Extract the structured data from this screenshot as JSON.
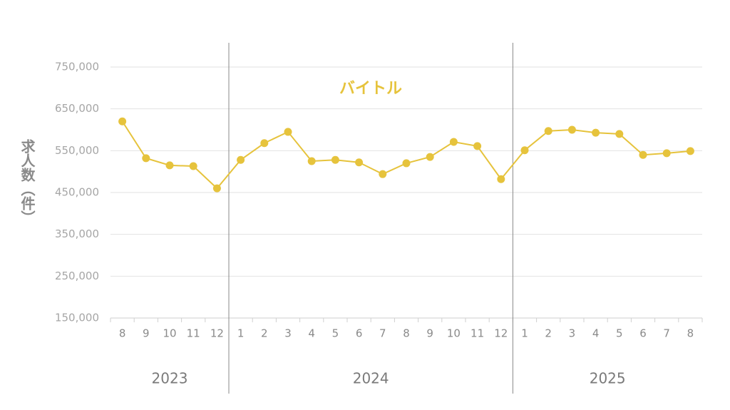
{
  "chart_data": {
    "type": "line",
    "title": "バイトル",
    "y_label": "求人数（件）",
    "categories": [
      "8",
      "9",
      "10",
      "11",
      "12",
      "1",
      "2",
      "3",
      "4",
      "5",
      "6",
      "7",
      "8",
      "9",
      "10",
      "11",
      "12",
      "1",
      "2",
      "3",
      "4",
      "5",
      "6",
      "7",
      "8"
    ],
    "year_groups": [
      {
        "name": "2023",
        "count": 5
      },
      {
        "name": "2024",
        "count": 12
      },
      {
        "name": "2025",
        "count": 8
      }
    ],
    "values": [
      620000,
      532000,
      515000,
      513000,
      460000,
      528000,
      568000,
      595000,
      525000,
      528000,
      522000,
      494000,
      520000,
      535000,
      571000,
      561000,
      482000,
      551000,
      597000,
      600000,
      593000,
      590000,
      540000,
      544000,
      549000
    ],
    "color": "#e6c33c",
    "ylim": [
      150000,
      750000
    ],
    "yticks": [
      {
        "value": 150000,
        "label": "150,000"
      },
      {
        "value": 250000,
        "label": "250,000"
      },
      {
        "value": 350000,
        "label": "350,000"
      },
      {
        "value": 450000,
        "label": "450,000"
      },
      {
        "value": 550000,
        "label": "550,000"
      },
      {
        "value": 650000,
        "label": "650,000"
      },
      {
        "value": 750000,
        "label": "750,000"
      }
    ],
    "grid": true
  }
}
